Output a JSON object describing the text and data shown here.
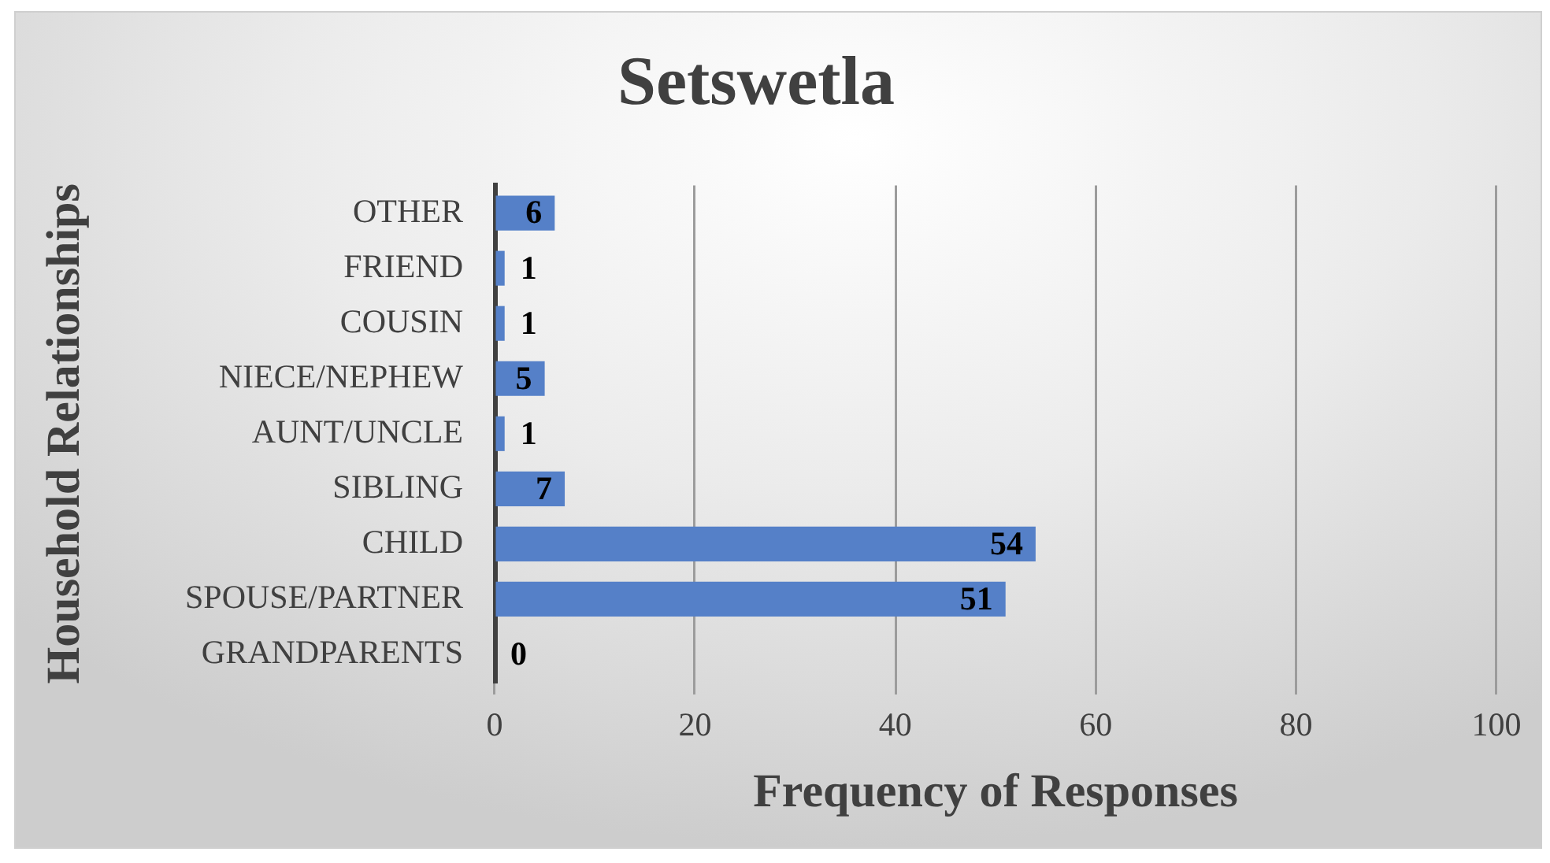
{
  "chart_data": {
    "type": "bar",
    "orientation": "horizontal",
    "title": "Setswetla",
    "xlabel": "Frequency of Responses",
    "ylabel": "Household Relationships",
    "categories": [
      "OTHER",
      "FRIEND",
      "COUSIN",
      "NIECE/NEPHEW",
      "AUNT/UNCLE",
      "SIBLING",
      "CHILD",
      "SPOUSE/PARTNER",
      "GRANDPARENTS"
    ],
    "values": [
      6,
      1,
      1,
      5,
      1,
      7,
      54,
      51,
      0
    ],
    "color": "#5580c8",
    "xlim": [
      0,
      100
    ],
    "xticks": [
      0,
      20,
      40,
      60,
      80,
      100
    ],
    "grid": "x",
    "legend": false,
    "data_labels": true
  }
}
